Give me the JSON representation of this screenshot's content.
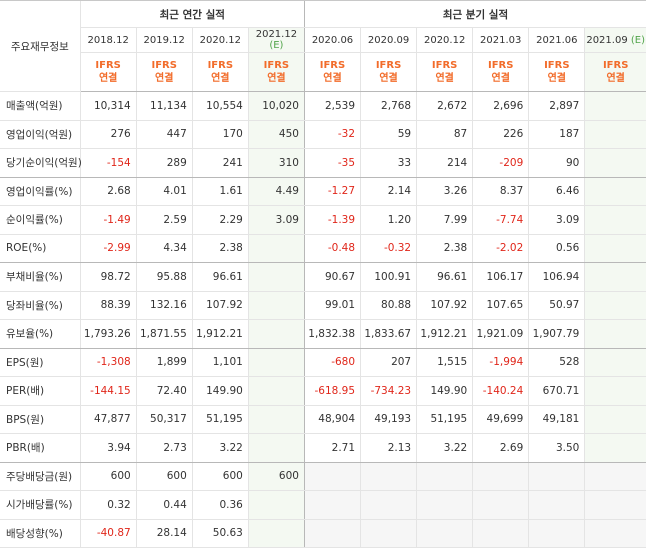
{
  "header": {
    "label_col": "주요재무정보",
    "annual_title": "최근 연간 실적",
    "quarter_title": "최근 분기 실적",
    "annual_periods": [
      "2018.12",
      "2019.12",
      "2020.12",
      "2021.12"
    ],
    "annual_est_mark": "(E)",
    "quarter_periods": [
      "2020.06",
      "2020.09",
      "2020.12",
      "2021.03",
      "2021.06",
      "2021.09"
    ],
    "quarter_est_mark": "(E)",
    "ifrs_top": "IFRS",
    "ifrs_bottom": "연결"
  },
  "rows": [
    {
      "label": "매출액(억원)",
      "annual": [
        "10,314",
        "11,134",
        "10,554",
        "10,020"
      ],
      "quarter": [
        "2,539",
        "2,768",
        "2,672",
        "2,696",
        "2,897",
        ""
      ]
    },
    {
      "label": "영업이익(억원)",
      "annual": [
        "276",
        "447",
        "170",
        "450"
      ],
      "quarter": [
        "-32",
        "59",
        "87",
        "226",
        "187",
        ""
      ]
    },
    {
      "label": "당기순이익(억원)",
      "annual": [
        "-154",
        "289",
        "241",
        "310"
      ],
      "quarter": [
        "-35",
        "33",
        "214",
        "-209",
        "90",
        ""
      ]
    },
    {
      "label": "영업이익률(%)",
      "annual": [
        "2.68",
        "4.01",
        "1.61",
        "4.49"
      ],
      "quarter": [
        "-1.27",
        "2.14",
        "3.26",
        "8.37",
        "6.46",
        ""
      ]
    },
    {
      "label": "순이익률(%)",
      "annual": [
        "-1.49",
        "2.59",
        "2.29",
        "3.09"
      ],
      "quarter": [
        "-1.39",
        "1.20",
        "7.99",
        "-7.74",
        "3.09",
        ""
      ]
    },
    {
      "label": "ROE(%)",
      "annual": [
        "-2.99",
        "4.34",
        "2.38",
        ""
      ],
      "quarter": [
        "-0.48",
        "-0.32",
        "2.38",
        "-2.02",
        "0.56",
        ""
      ]
    },
    {
      "label": "부채비율(%)",
      "annual": [
        "98.72",
        "95.88",
        "96.61",
        ""
      ],
      "quarter": [
        "90.67",
        "100.91",
        "96.61",
        "106.17",
        "106.94",
        ""
      ]
    },
    {
      "label": "당좌비율(%)",
      "annual": [
        "88.39",
        "132.16",
        "107.92",
        ""
      ],
      "quarter": [
        "99.01",
        "80.88",
        "107.92",
        "107.65",
        "50.97",
        ""
      ]
    },
    {
      "label": "유보율(%)",
      "annual": [
        "1,793.26",
        "1,871.55",
        "1,912.21",
        ""
      ],
      "quarter": [
        "1,832.38",
        "1,833.67",
        "1,912.21",
        "1,921.09",
        "1,907.79",
        ""
      ]
    },
    {
      "label": "EPS(원)",
      "annual": [
        "-1,308",
        "1,899",
        "1,101",
        ""
      ],
      "quarter": [
        "-680",
        "207",
        "1,515",
        "-1,994",
        "528",
        ""
      ]
    },
    {
      "label": "PER(배)",
      "annual": [
        "-144.15",
        "72.40",
        "149.90",
        ""
      ],
      "quarter": [
        "-618.95",
        "-734.23",
        "149.90",
        "-140.24",
        "670.71",
        ""
      ]
    },
    {
      "label": "BPS(원)",
      "annual": [
        "47,877",
        "50,317",
        "51,195",
        ""
      ],
      "quarter": [
        "48,904",
        "49,193",
        "51,195",
        "49,699",
        "49,181",
        ""
      ]
    },
    {
      "label": "PBR(배)",
      "annual": [
        "3.94",
        "2.73",
        "3.22",
        ""
      ],
      "quarter": [
        "2.71",
        "2.13",
        "3.22",
        "2.69",
        "3.50",
        ""
      ]
    },
    {
      "label": "주당배당금(원)",
      "annual": [
        "600",
        "600",
        "600",
        "600"
      ],
      "quarter": [
        "",
        "",
        "",
        "",
        "",
        ""
      ]
    },
    {
      "label": "시가배당률(%)",
      "annual": [
        "0.32",
        "0.44",
        "0.36",
        ""
      ],
      "quarter": [
        "",
        "",
        "",
        "",
        "",
        ""
      ]
    },
    {
      "label": "배당성향(%)",
      "annual": [
        "-40.87",
        "28.14",
        "50.63",
        ""
      ],
      "quarter": [
        "",
        "",
        "",
        "",
        "",
        ""
      ]
    }
  ],
  "colors": {
    "negative": "#e0261a",
    "ifrs": "#f26c2a",
    "estimate_mark": "#51a44a",
    "estimate_bg": "#f4f9f2"
  }
}
